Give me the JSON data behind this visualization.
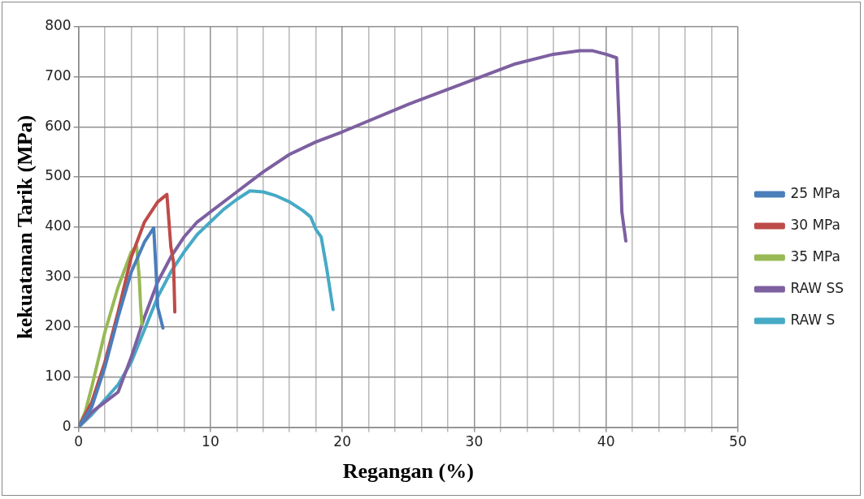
{
  "chart_data": {
    "type": "line",
    "xlabel": "Regangan (%)",
    "ylabel": "kekuatanan Tarik (MPa)",
    "xlim": [
      0,
      50
    ],
    "xticks": [
      0,
      {
        "value": 2,
        "label": null
      },
      {
        "value": 4,
        "label": null
      },
      {
        "value": 6,
        "label": null
      },
      {
        "value": 8,
        "label": null
      },
      10,
      {
        "value": 12,
        "label": null
      },
      {
        "value": 14,
        "label": null
      },
      {
        "value": 16,
        "label": null
      },
      {
        "value": 18,
        "label": null
      },
      20,
      {
        "value": 22,
        "label": null
      },
      {
        "value": 24,
        "label": null
      },
      {
        "value": 26,
        "label": null
      },
      {
        "value": 28,
        "label": null
      },
      30,
      {
        "value": 32,
        "label": null
      },
      {
        "value": 34,
        "label": null
      },
      {
        "value": 36,
        "label": null
      },
      {
        "value": 38,
        "label": null
      },
      40,
      {
        "value": 42,
        "label": null
      },
      {
        "value": 44,
        "label": null
      },
      {
        "value": 46,
        "label": null
      },
      {
        "value": 48,
        "label": null
      },
      50
    ],
    "ylim": [
      0,
      800
    ],
    "yticks": [
      0,
      100,
      200,
      300,
      400,
      500,
      600,
      700,
      800
    ],
    "grid": true,
    "legend": "right",
    "marker": "none",
    "line_style": "solid",
    "series": [
      {
        "name": "25 MPa",
        "color": "#4a7ebb",
        "x": [
          0,
          1,
          2,
          3,
          4,
          5,
          5.7,
          5.9,
          6,
          6.4
        ],
        "values": [
          0,
          40,
          120,
          220,
          310,
          370,
          398,
          300,
          240,
          198
        ]
      },
      {
        "name": "30 MPa",
        "color": "#be4b48",
        "x": [
          0,
          1,
          2,
          3,
          4,
          5,
          6,
          6.7,
          7,
          7.2,
          7.3
        ],
        "values": [
          0,
          50,
          130,
          230,
          340,
          410,
          450,
          465,
          360,
          330,
          230
        ]
      },
      {
        "name": "35 MPa",
        "color": "#98b954",
        "x": [
          0,
          0.5,
          1,
          2,
          3,
          4,
          4.4,
          4.6,
          4.7,
          4.8
        ],
        "values": [
          0,
          30,
          80,
          190,
          280,
          350,
          362,
          300,
          245,
          205
        ]
      },
      {
        "name": "RAW SS",
        "color": "#7d60a0",
        "x": [
          0,
          1,
          2,
          3,
          4,
          5,
          6,
          7,
          8,
          9,
          10,
          12,
          14,
          16,
          18,
          20,
          25,
          30,
          33,
          36,
          38,
          39,
          40,
          40.8,
          41,
          41.2,
          41.5
        ],
        "values": [
          0,
          30,
          50,
          70,
          140,
          220,
          290,
          340,
          380,
          410,
          430,
          470,
          510,
          545,
          570,
          590,
          645,
          695,
          725,
          745,
          752,
          752,
          745,
          738,
          600,
          430,
          372
        ]
      },
      {
        "name": "RAW S",
        "color": "#46aac5",
        "x": [
          0,
          1,
          2,
          3,
          4,
          5,
          6,
          7,
          8,
          9,
          10,
          11,
          12,
          13,
          14,
          15,
          16,
          17,
          17.6,
          18,
          18.4,
          18.8,
          19.3
        ],
        "values": [
          0,
          25,
          55,
          85,
          130,
          195,
          260,
          310,
          350,
          385,
          410,
          435,
          455,
          472,
          470,
          462,
          450,
          433,
          420,
          395,
          380,
          320,
          235
        ]
      }
    ]
  }
}
